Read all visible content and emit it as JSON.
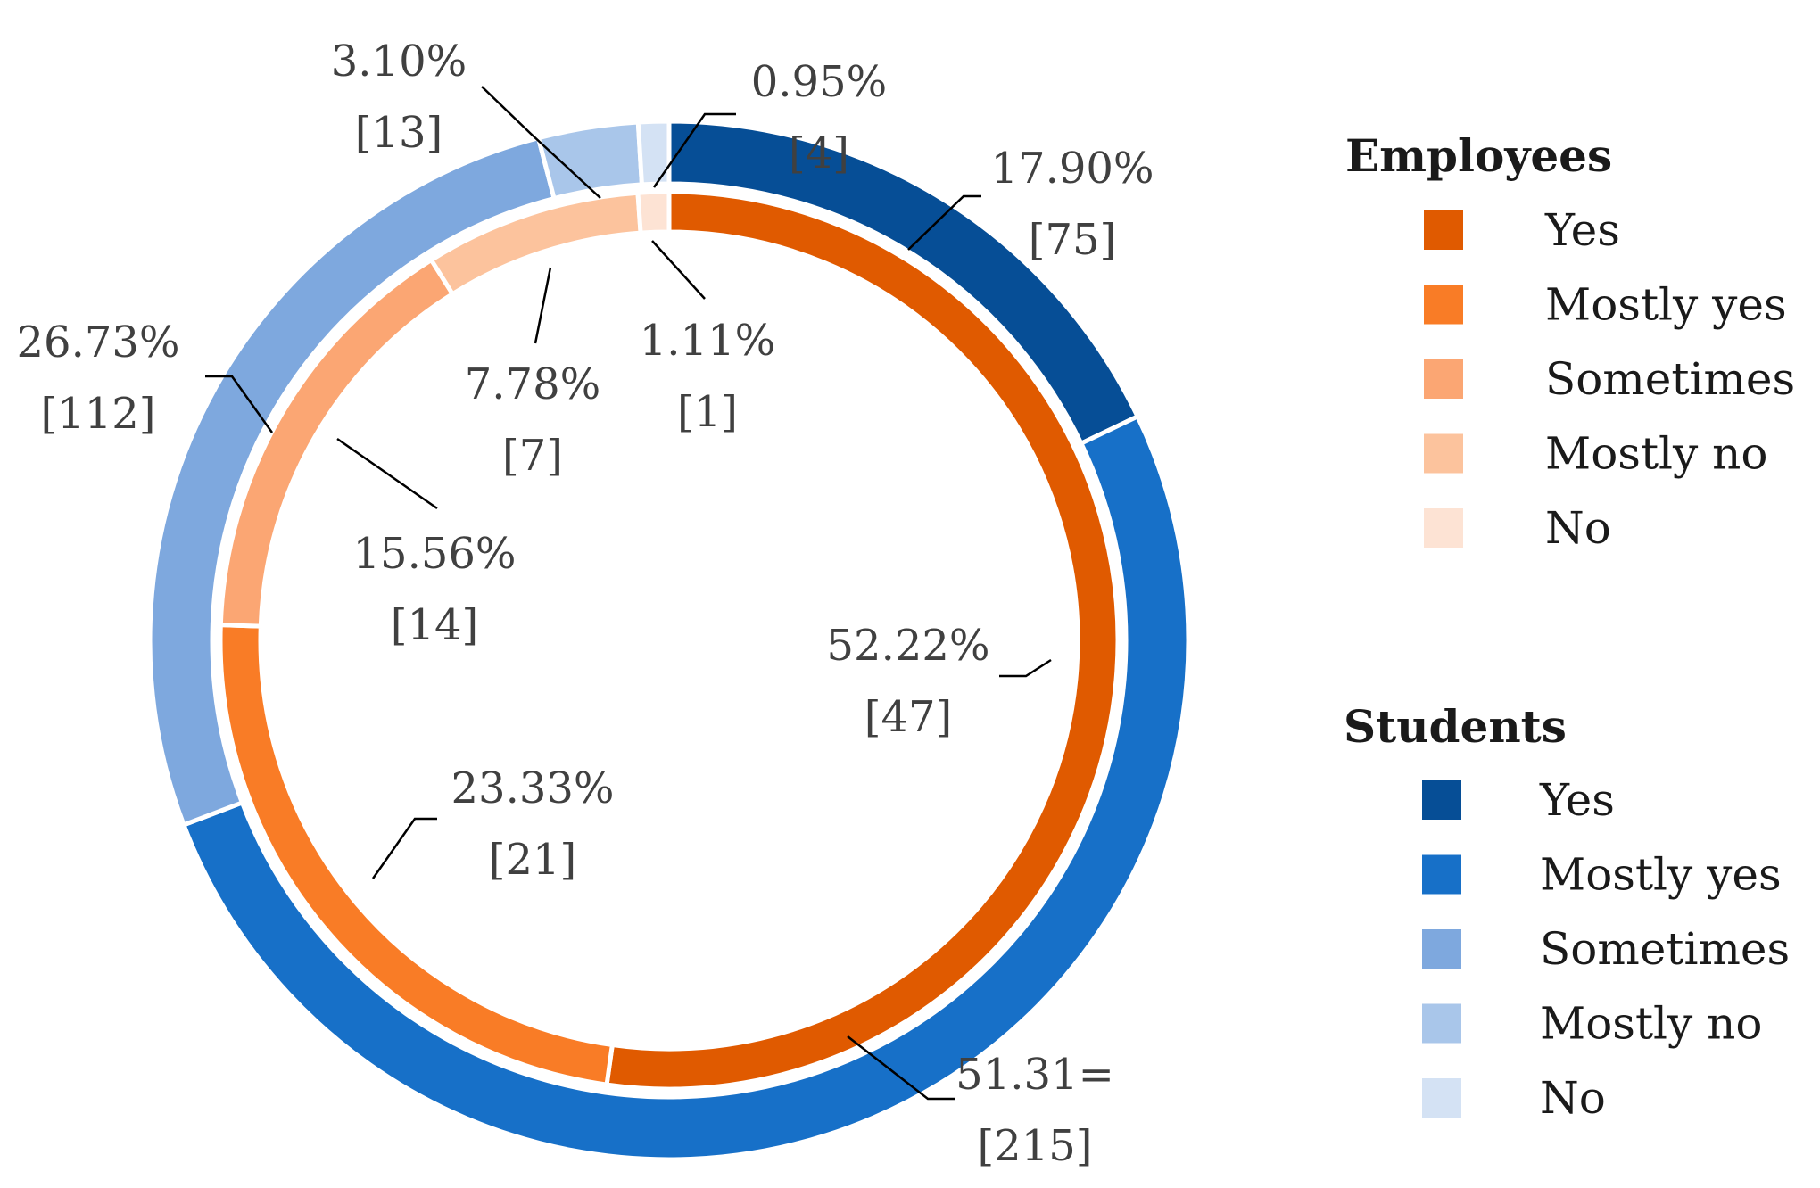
{
  "chart_data": {
    "type": "pie",
    "subtype": "nested-donut",
    "categories": [
      "Yes",
      "Mostly yes",
      "Sometimes",
      "Mostly no",
      "No"
    ],
    "series": [
      {
        "name": "Employees",
        "ring": "inner",
        "percent_labels": [
          "52.22%",
          "23.33%",
          "15.56%",
          "7.78%",
          "1.11%"
        ],
        "values": [
          52.22,
          23.33,
          15.56,
          7.78,
          1.11
        ],
        "count_labels": [
          "[47]",
          "[21]",
          "[14]",
          "[7]",
          "[1]"
        ],
        "colors": [
          "#E05A00",
          "#F97C26",
          "#FBA673",
          "#FCC39D",
          "#FDE3D4"
        ]
      },
      {
        "name": "Students",
        "ring": "outer",
        "percent_labels": [
          "17.90%",
          "51.31=",
          "26.73%",
          "3.10%",
          "0.95%"
        ],
        "values": [
          17.9,
          51.31,
          26.73,
          3.1,
          0.95
        ],
        "count_labels": [
          "[75]",
          "[215]",
          "[112]",
          "[13]",
          "[4]"
        ],
        "colors": [
          "#064E96",
          "#1770C8",
          "#7EA8DE",
          "#A9C6EA",
          "#D4E2F4"
        ]
      }
    ],
    "legend": {
      "position": "right",
      "groups": [
        {
          "title": "Employees",
          "items": [
            "Yes",
            "Mostly yes",
            "Sometimes",
            "Mostly no",
            "No"
          ]
        },
        {
          "title": "Students",
          "items": [
            "Yes",
            "Mostly yes",
            "Sometimes",
            "Mostly no",
            "No"
          ]
        }
      ]
    }
  }
}
